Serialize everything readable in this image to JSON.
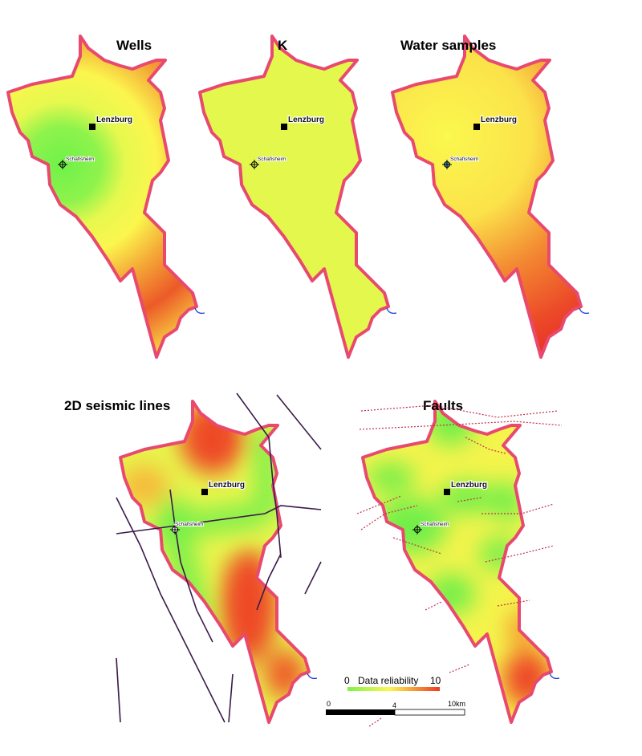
{
  "panels": [
    {
      "title": "Wells",
      "town": "Lenzburg",
      "village": "Schafisheim"
    },
    {
      "title": "K",
      "town": "Lenzburg",
      "village": "Schafisheim"
    },
    {
      "title": "Water samples",
      "town": "Lenzburg",
      "village": "Schafisheim"
    },
    {
      "title": "2D seismic lines",
      "town": "Lenzburg",
      "village": "Schafisheim"
    },
    {
      "title": "Faults",
      "town": "Lenzburg",
      "village": "Schafisheim"
    }
  ],
  "legend": {
    "min": "0",
    "label": "Data reliability",
    "max": "10",
    "colors": [
      "#7ff24a",
      "#fbf84e",
      "#ee3a24"
    ]
  },
  "scalebar": {
    "start": "0",
    "mid": "4",
    "end": "10km"
  },
  "colors": {
    "boundary": "#e84a6f",
    "seismic_line": "#3b1a4a",
    "fault": "#c0304a",
    "river": "#2040e0"
  }
}
